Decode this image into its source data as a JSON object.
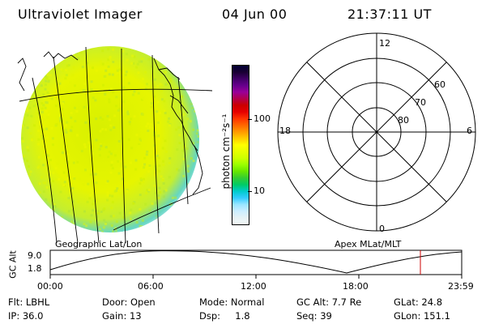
{
  "header": {
    "instrument": "Ultraviolet Imager",
    "date": "04 Jun 00",
    "time": "21:37:11 UT"
  },
  "colorbar": {
    "unit_label": "photon cm⁻²s⁻¹",
    "ticks": [
      "100",
      "10"
    ],
    "colors_top_to_bottom": [
      "#000033",
      "#1a0033",
      "#400066",
      "#66008c",
      "#990099",
      "#b3004d",
      "#cc0000",
      "#e60000",
      "#ff3300",
      "#ff6600",
      "#ff9900",
      "#ffcc00",
      "#ffff00",
      "#e6ff00",
      "#ccff00",
      "#99ff00",
      "#66e600",
      "#33cc33",
      "#00cc66",
      "#00cccc",
      "#33ccff",
      "#99e6ff",
      "#cceeff",
      "#e6f2f5",
      "#f2f7f7"
    ]
  },
  "polar_plot": {
    "mlt_labels": {
      "top": "12",
      "right": "6",
      "bottom": "0",
      "left": "18"
    },
    "lat_labels": [
      "60",
      "70",
      "80"
    ]
  },
  "altitude_plot": {
    "ylabel": "GC Alt",
    "yticks": [
      "9.0",
      "1.8"
    ],
    "left_label": "Geographic Lat/Lon",
    "right_label": "Apex MLat/MLT",
    "xticks": [
      "00:00",
      "06:00",
      "12:00",
      "18:00",
      "23:59"
    ],
    "marker_color": "#cc0000"
  },
  "info": {
    "row1": {
      "filter": "Flt: LBHL",
      "door": "Door: Open",
      "mode": "Mode: Normal",
      "gc_alt": "GC Alt: 7.7 Re",
      "glat": "GLat:  24.8"
    },
    "row2": {
      "ip": "IP: 36.0",
      "gain": "Gain: 13",
      "dsp": "Dsp:     1.8",
      "seq": "Seq: 39",
      "glon": "GLon: 151.1"
    }
  }
}
